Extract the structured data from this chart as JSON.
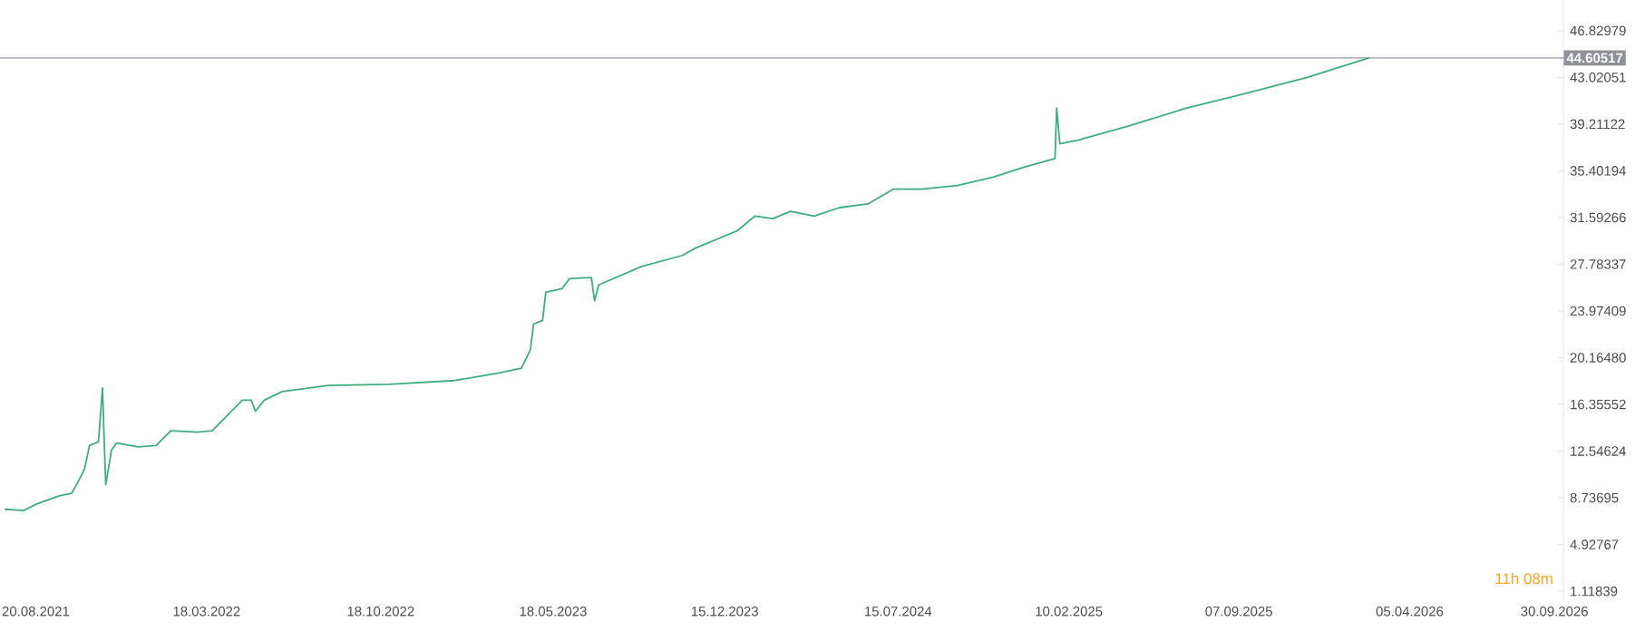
{
  "chart_data": {
    "type": "line",
    "x": [
      "2021-07-13",
      "2021-08-05",
      "2021-08-20",
      "2021-09-18",
      "2021-10-03",
      "2021-10-10",
      "2021-10-19",
      "2021-10-25",
      "2021-11-05",
      "2021-11-10",
      "2021-11-12",
      "2021-11-14",
      "2021-11-21",
      "2021-11-27",
      "2021-12-24",
      "2022-01-15",
      "2022-02-02",
      "2022-03-07",
      "2022-03-25",
      "2022-04-13",
      "2022-05-01",
      "2022-05-12",
      "2022-05-17",
      "2022-05-28",
      "2022-06-19",
      "2022-08-15",
      "2022-10-29",
      "2023-01-17",
      "2023-03-11",
      "2023-04-09",
      "2023-04-20",
      "2023-04-24",
      "2023-05-05",
      "2023-05-09",
      "2023-05-29",
      "2023-06-07",
      "2023-07-04",
      "2023-07-08",
      "2023-07-13",
      "2023-09-04",
      "2023-10-24",
      "2023-11-09",
      "2023-12-30",
      "2024-01-21",
      "2024-02-12",
      "2024-03-05",
      "2024-04-03",
      "2024-05-04",
      "2024-06-08",
      "2024-07-09",
      "2024-08-13",
      "2024-09-26",
      "2024-11-10",
      "2024-12-17",
      "2025-01-24",
      "2025-01-26",
      "2025-01-30",
      "2025-02-21",
      "2025-04-22",
      "2025-07-04",
      "2025-09-15",
      "2025-11-29",
      "2026-02-14"
    ],
    "series": [
      {
        "color": "#3fae7f",
        "values": [
          7.8,
          7.7,
          8.2,
          8.9,
          9.1,
          9.9,
          11.1,
          13.0,
          13.3,
          17.7,
          13.6,
          9.8,
          12.6,
          13.2,
          12.9,
          13.0,
          14.2,
          14.1,
          14.2,
          15.5,
          16.7,
          16.7,
          15.8,
          16.7,
          17.4,
          17.9,
          18.0,
          18.3,
          18.9,
          19.3,
          20.8,
          22.9,
          23.2,
          25.5,
          25.8,
          26.6,
          26.7,
          24.8,
          26.1,
          27.6,
          28.5,
          29.1,
          30.5,
          31.7,
          31.5,
          32.1,
          31.7,
          32.4,
          32.7,
          33.9,
          33.9,
          34.2,
          34.9,
          35.7,
          36.4,
          40.5,
          37.6,
          37.9,
          39.0,
          40.5,
          41.7,
          43.0,
          44.6
        ]
      }
    ],
    "xlim": [
      "2021-07-07",
      "2026-10-11"
    ],
    "ylim": [
      0.39,
      49.33
    ],
    "xticks": [
      {
        "value": "2021-08-20",
        "label": "20.08.2021"
      },
      {
        "value": "2022-03-18",
        "label": "18.03.2022"
      },
      {
        "value": "2022-10-18",
        "label": "18.10.2022"
      },
      {
        "value": "2023-05-18",
        "label": "18.05.2023"
      },
      {
        "value": "2023-12-15",
        "label": "15.12.2023"
      },
      {
        "value": "2024-07-15",
        "label": "15.07.2024"
      },
      {
        "value": "2025-02-10",
        "label": "10.02.2025"
      },
      {
        "value": "2025-09-07",
        "label": "07.09.2025"
      },
      {
        "value": "2026-04-05",
        "label": "05.04.2026"
      },
      {
        "value": "2026-09-30",
        "label": "30.09.2026"
      }
    ],
    "yticks": [
      {
        "value": 1.11839,
        "label": "1.11839"
      },
      {
        "value": 4.92767,
        "label": "4.92767"
      },
      {
        "value": 8.73695,
        "label": "8.73695"
      },
      {
        "value": 12.54624,
        "label": "12.54624"
      },
      {
        "value": 16.35552,
        "label": "16.35552"
      },
      {
        "value": 20.1648,
        "label": "20.16480"
      },
      {
        "value": 23.97409,
        "label": "23.97409"
      },
      {
        "value": 27.78337,
        "label": "27.78337"
      },
      {
        "value": 31.59266,
        "label": "31.59266"
      },
      {
        "value": 35.40194,
        "label": "35.40194"
      },
      {
        "value": 39.21122,
        "label": "39.21122"
      },
      {
        "value": 43.02051,
        "label": "43.02051"
      },
      {
        "value": 46.82979,
        "label": "46.82979"
      }
    ],
    "ref_lines": [
      {
        "axis": "y",
        "value": 44.60517,
        "label": "44.60517",
        "color": "#b2b5be"
      }
    ],
    "annotations": [
      "11h 08m"
    ],
    "grid": false,
    "marker": "none",
    "line_style": "solid"
  }
}
